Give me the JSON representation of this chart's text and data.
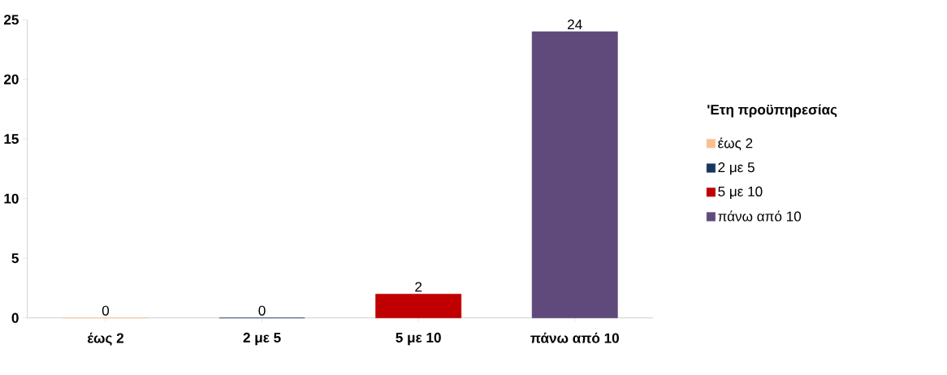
{
  "chart_data": {
    "type": "bar",
    "legend_title": "'Ετη προϋπηρεσίας",
    "categories": [
      "έως 2",
      "2 με 5",
      "5 με 10",
      "πάνω από 10"
    ],
    "series": [
      {
        "name": "έως 2",
        "color": "#fabf8f",
        "values": [
          0,
          null,
          null,
          null
        ]
      },
      {
        "name": "2 με 5",
        "color": "#17375e",
        "values": [
          null,
          0,
          null,
          null
        ]
      },
      {
        "name": "5 με 10",
        "color": "#c00000",
        "values": [
          null,
          null,
          2,
          null
        ]
      },
      {
        "name": "πάνω από 10",
        "color": "#604a7b",
        "values": [
          null,
          null,
          null,
          24
        ]
      }
    ],
    "ylim": [
      0,
      25
    ],
    "yticks": [
      0,
      5,
      10,
      15,
      20,
      25
    ],
    "data_labels": true,
    "legend": "right",
    "grid": false
  }
}
